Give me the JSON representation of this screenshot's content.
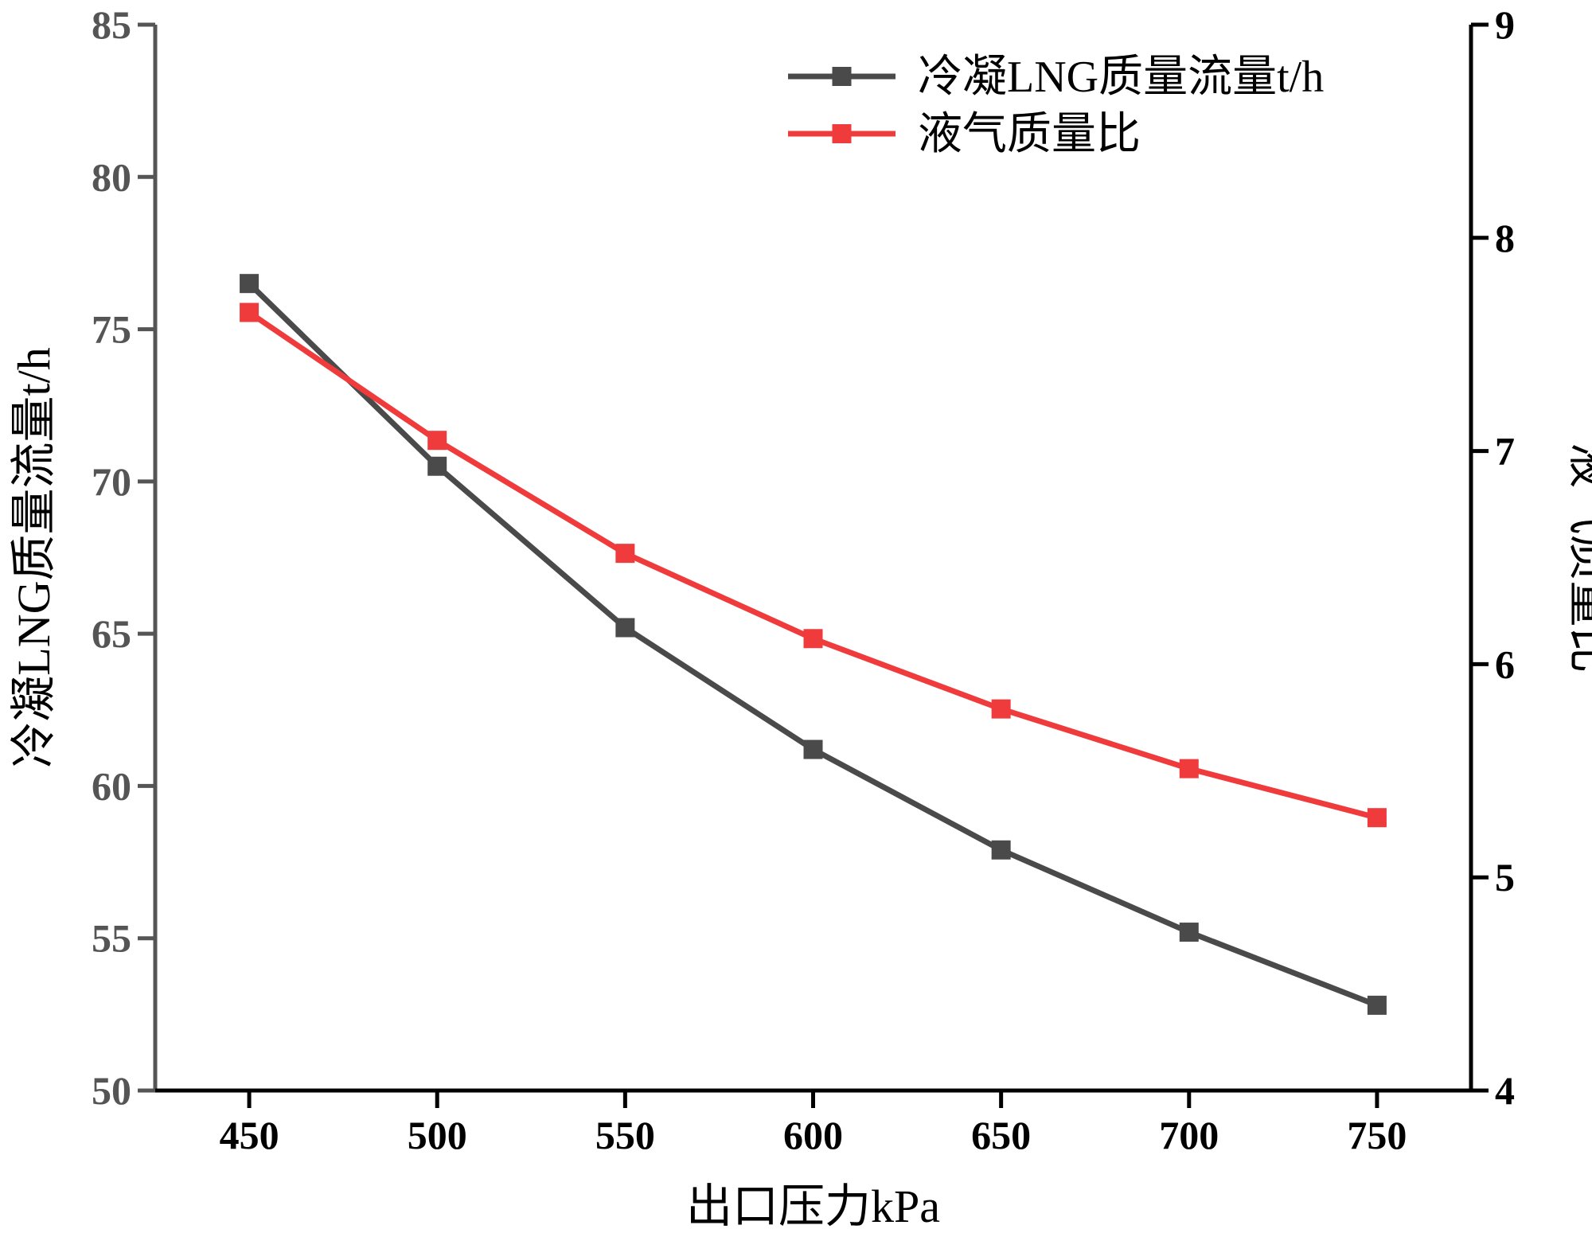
{
  "chart_data": {
    "type": "line",
    "xlabel": "出口压力kPa",
    "ylabel": "冷凝LNG质量流量t/h",
    "y2label": "液气质量比",
    "x": [
      450,
      500,
      550,
      600,
      650,
      700,
      750
    ],
    "xlim": [
      425,
      775
    ],
    "ylim": [
      50,
      85
    ],
    "y2lim": [
      4,
      9
    ],
    "xticks": [
      450,
      500,
      550,
      600,
      650,
      700,
      750
    ],
    "yticks": [
      50,
      55,
      60,
      65,
      70,
      75,
      80,
      85
    ],
    "y2ticks": [
      4,
      5,
      6,
      7,
      8,
      9
    ],
    "grid": false,
    "legend_position": "top-right",
    "series": [
      {
        "name": "冷凝LNG质量流量t/h",
        "axis": "left",
        "color": "#4a4a4a",
        "marker": "square",
        "values": [
          76.5,
          70.5,
          65.2,
          61.2,
          57.9,
          55.2,
          52.8
        ]
      },
      {
        "name": "液气质量比",
        "axis": "right",
        "color": "#ef3b3c",
        "marker": "square",
        "values": [
          7.65,
          7.05,
          6.52,
          6.12,
          5.79,
          5.51,
          5.28
        ]
      }
    ]
  },
  "colors": {
    "left_axis": "#555555",
    "right_axis": "#000000",
    "bottom_axis": "#000000"
  }
}
